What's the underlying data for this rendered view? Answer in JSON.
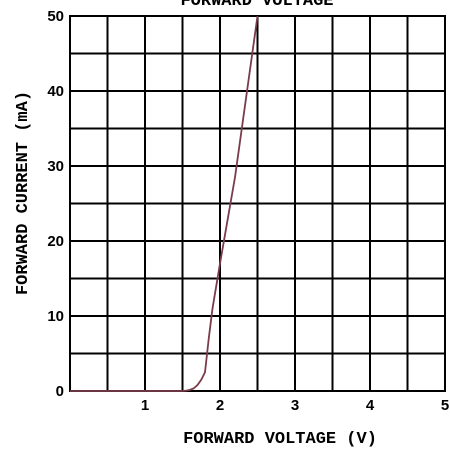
{
  "chart_data": {
    "type": "line",
    "title": "FORWARD VOLTAGE",
    "xlabel": "FORWARD VOLTAGE (V)",
    "ylabel": "FORWARD CURRENT (mA)",
    "xlim": [
      0,
      5
    ],
    "ylim": [
      0,
      50
    ],
    "x_ticks": [
      1,
      2,
      3,
      4,
      5
    ],
    "x_tick_labels": [
      "1",
      "2",
      "3",
      "4",
      "5"
    ],
    "y_ticks": [
      0,
      10,
      20,
      30,
      40,
      50
    ],
    "y_tick_labels": [
      "0",
      "10",
      "20",
      "30",
      "40",
      "50"
    ],
    "x_grid_step": 0.5,
    "y_grid_step": 5,
    "grid": true,
    "series": [
      {
        "color": "#7a3b4a",
        "x": [
          0,
          1.5,
          1.55,
          1.6,
          1.65,
          1.7,
          1.75,
          1.8,
          1.85,
          1.9,
          2.0,
          2.2,
          2.5
        ],
        "y": [
          0,
          0,
          0.05,
          0.15,
          0.35,
          0.8,
          1.5,
          2.5,
          7,
          11,
          17,
          28.5,
          50
        ]
      }
    ]
  }
}
